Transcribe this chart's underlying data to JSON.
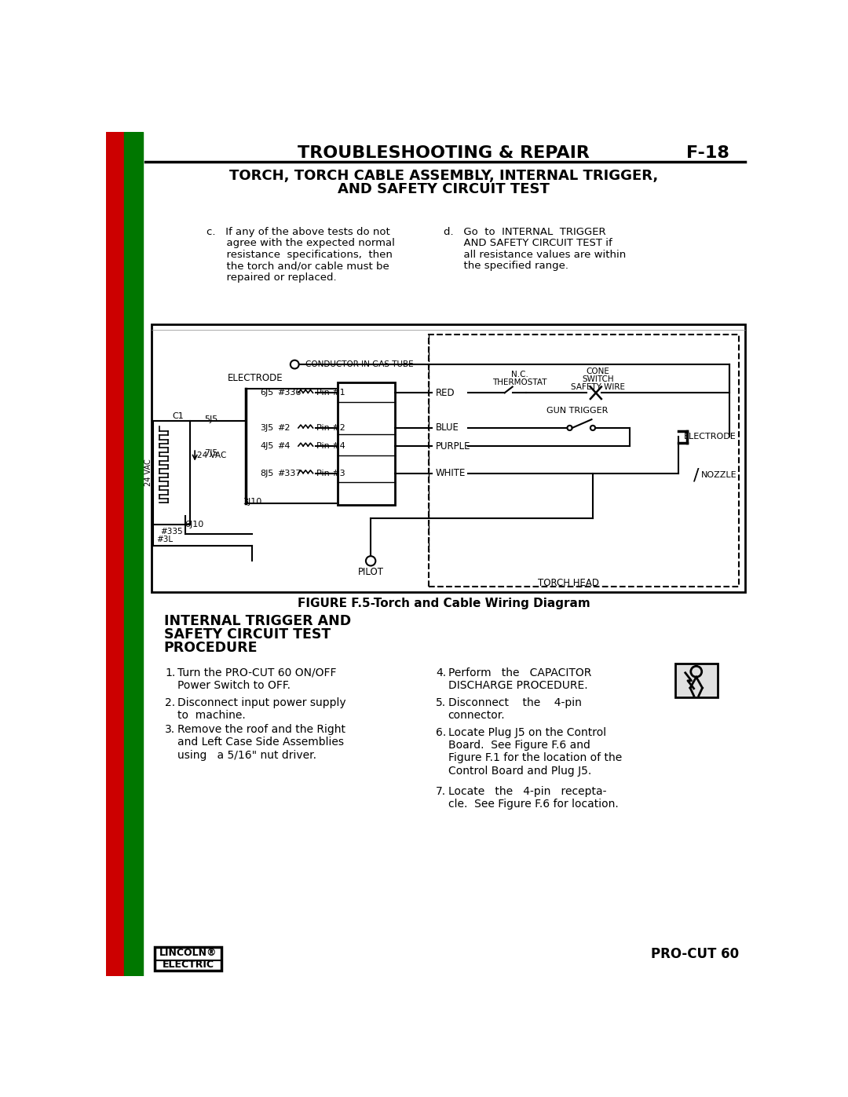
{
  "page_title": "TROUBLESHOOTING & REPAIR",
  "page_number": "F-18",
  "section_title_line1": "TORCH, TORCH CABLE ASSEMBLY, INTERNAL TRIGGER,",
  "section_title_line2": "AND SAFETY CIRCUIT TEST",
  "figure_caption": "FIGURE F.5-Torch and Cable Wiring Diagram",
  "procedure_title1": "INTERNAL TRIGGER AND",
  "procedure_title2": "SAFETY CIRCUIT TEST",
  "procedure_title3": "PROCEDURE",
  "footer_right": "PRO-CUT 60",
  "bg_color": "#ffffff",
  "text_color": "#000000"
}
